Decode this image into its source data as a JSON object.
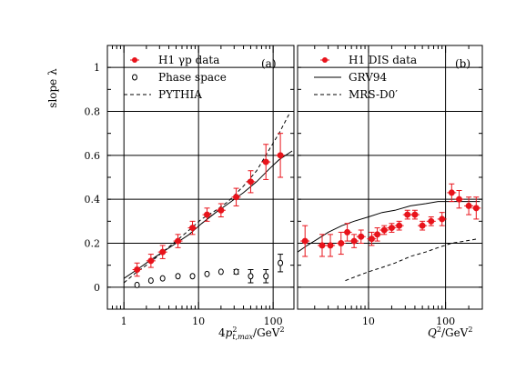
{
  "ylabel": "slope λ",
  "colors": {
    "data": "#e8131b",
    "frame": "#000000"
  },
  "chart_data": [
    {
      "type": "scatter",
      "panel_tag": "(a)",
      "xlabel": "4p²t,max/GeV²",
      "x_scale": "log",
      "xlim": [
        0.6,
        190
      ],
      "ylim": [
        -0.1,
        1.1
      ],
      "y_ticks": [
        "0",
        "0.2",
        "0.4",
        "0.6",
        "0.8",
        "1"
      ],
      "x_ticks": [
        "1",
        "10",
        "100"
      ],
      "grid": true,
      "legend": {
        "placement": "top-left",
        "entries": [
          "H1 γp data",
          "Phase space",
          "PYTHIA"
        ]
      },
      "series": [
        {
          "name": "H1 γp data",
          "x": [
            1.5,
            2.3,
            3.3,
            5.3,
            8.3,
            13,
            20,
            32,
            50,
            80,
            125
          ],
          "y": [
            0.08,
            0.12,
            0.16,
            0.21,
            0.27,
            0.33,
            0.35,
            0.41,
            0.48,
            0.57,
            0.6
          ],
          "yerr": [
            0.03,
            0.03,
            0.03,
            0.03,
            0.03,
            0.03,
            0.03,
            0.04,
            0.05,
            0.08,
            0.1
          ]
        },
        {
          "name": "Phase space",
          "x": [
            1.5,
            2.3,
            3.3,
            5.3,
            8.3,
            13,
            20,
            32,
            50,
            80,
            125
          ],
          "y": [
            0.01,
            0.03,
            0.04,
            0.05,
            0.05,
            0.06,
            0.07,
            0.07,
            0.05,
            0.05,
            0.11
          ],
          "yerr": [
            0.0,
            0.0,
            0.0,
            0.0,
            0.0,
            0.0,
            0.0,
            0.01,
            0.03,
            0.03,
            0.04
          ]
        },
        {
          "name": "solid-curve",
          "x": [
            1.0,
            1.5,
            2.2,
            3.3,
            5,
            7.5,
            11,
            17,
            25,
            40,
            60,
            90,
            120,
            180
          ],
          "y": [
            0.04,
            0.08,
            0.12,
            0.16,
            0.2,
            0.24,
            0.29,
            0.34,
            0.38,
            0.43,
            0.48,
            0.54,
            0.58,
            0.62
          ]
        },
        {
          "name": "PYTHIA",
          "x": [
            1.0,
            1.5,
            2.2,
            3.3,
            5,
            7.5,
            11,
            17,
            25,
            40,
            60,
            90,
            120,
            165
          ],
          "y": [
            0.02,
            0.07,
            0.11,
            0.16,
            0.21,
            0.26,
            0.31,
            0.35,
            0.39,
            0.46,
            0.53,
            0.63,
            0.7,
            0.79
          ]
        }
      ]
    },
    {
      "type": "scatter",
      "panel_tag": "(b)",
      "xlabel": "Q²/GeV²",
      "x_scale": "log",
      "xlim": [
        1.2,
        300
      ],
      "ylim": [
        -0.1,
        1.1
      ],
      "x_ticks": [
        "10",
        "100"
      ],
      "grid": true,
      "legend": {
        "placement": "top-left",
        "entries": [
          "H1 DIS data",
          "GRV94",
          "MRS-D0′"
        ]
      },
      "series": [
        {
          "name": "H1 DIS data",
          "x": [
            1.5,
            2.5,
            3.2,
            4.4,
            5.3,
            6.5,
            8,
            11,
            13,
            16,
            20,
            25,
            32,
            40,
            50,
            65,
            90,
            120,
            150,
            200,
            250
          ],
          "y": [
            0.21,
            0.19,
            0.19,
            0.2,
            0.25,
            0.21,
            0.23,
            0.22,
            0.24,
            0.26,
            0.27,
            0.28,
            0.33,
            0.33,
            0.28,
            0.3,
            0.31,
            0.43,
            0.4,
            0.37,
            0.36
          ],
          "yerr": [
            0.07,
            0.05,
            0.05,
            0.05,
            0.04,
            0.03,
            0.03,
            0.03,
            0.03,
            0.02,
            0.02,
            0.02,
            0.02,
            0.02,
            0.02,
            0.02,
            0.03,
            0.04,
            0.04,
            0.04,
            0.05
          ]
        },
        {
          "name": "GRV94",
          "x": [
            1.2,
            1.6,
            2.2,
            3,
            4.5,
            6.5,
            10,
            15,
            22,
            35,
            55,
            80,
            120,
            180,
            280
          ],
          "y": [
            0.16,
            0.19,
            0.22,
            0.25,
            0.28,
            0.3,
            0.32,
            0.34,
            0.35,
            0.37,
            0.38,
            0.39,
            0.39,
            0.39,
            0.39
          ]
        },
        {
          "name": "MRS-D0′",
          "x": [
            5,
            7,
            10,
            15,
            22,
            35,
            55,
            80,
            120,
            180,
            260
          ],
          "y": [
            0.03,
            0.05,
            0.07,
            0.09,
            0.11,
            0.14,
            0.16,
            0.18,
            0.2,
            0.21,
            0.22
          ]
        }
      ]
    }
  ]
}
